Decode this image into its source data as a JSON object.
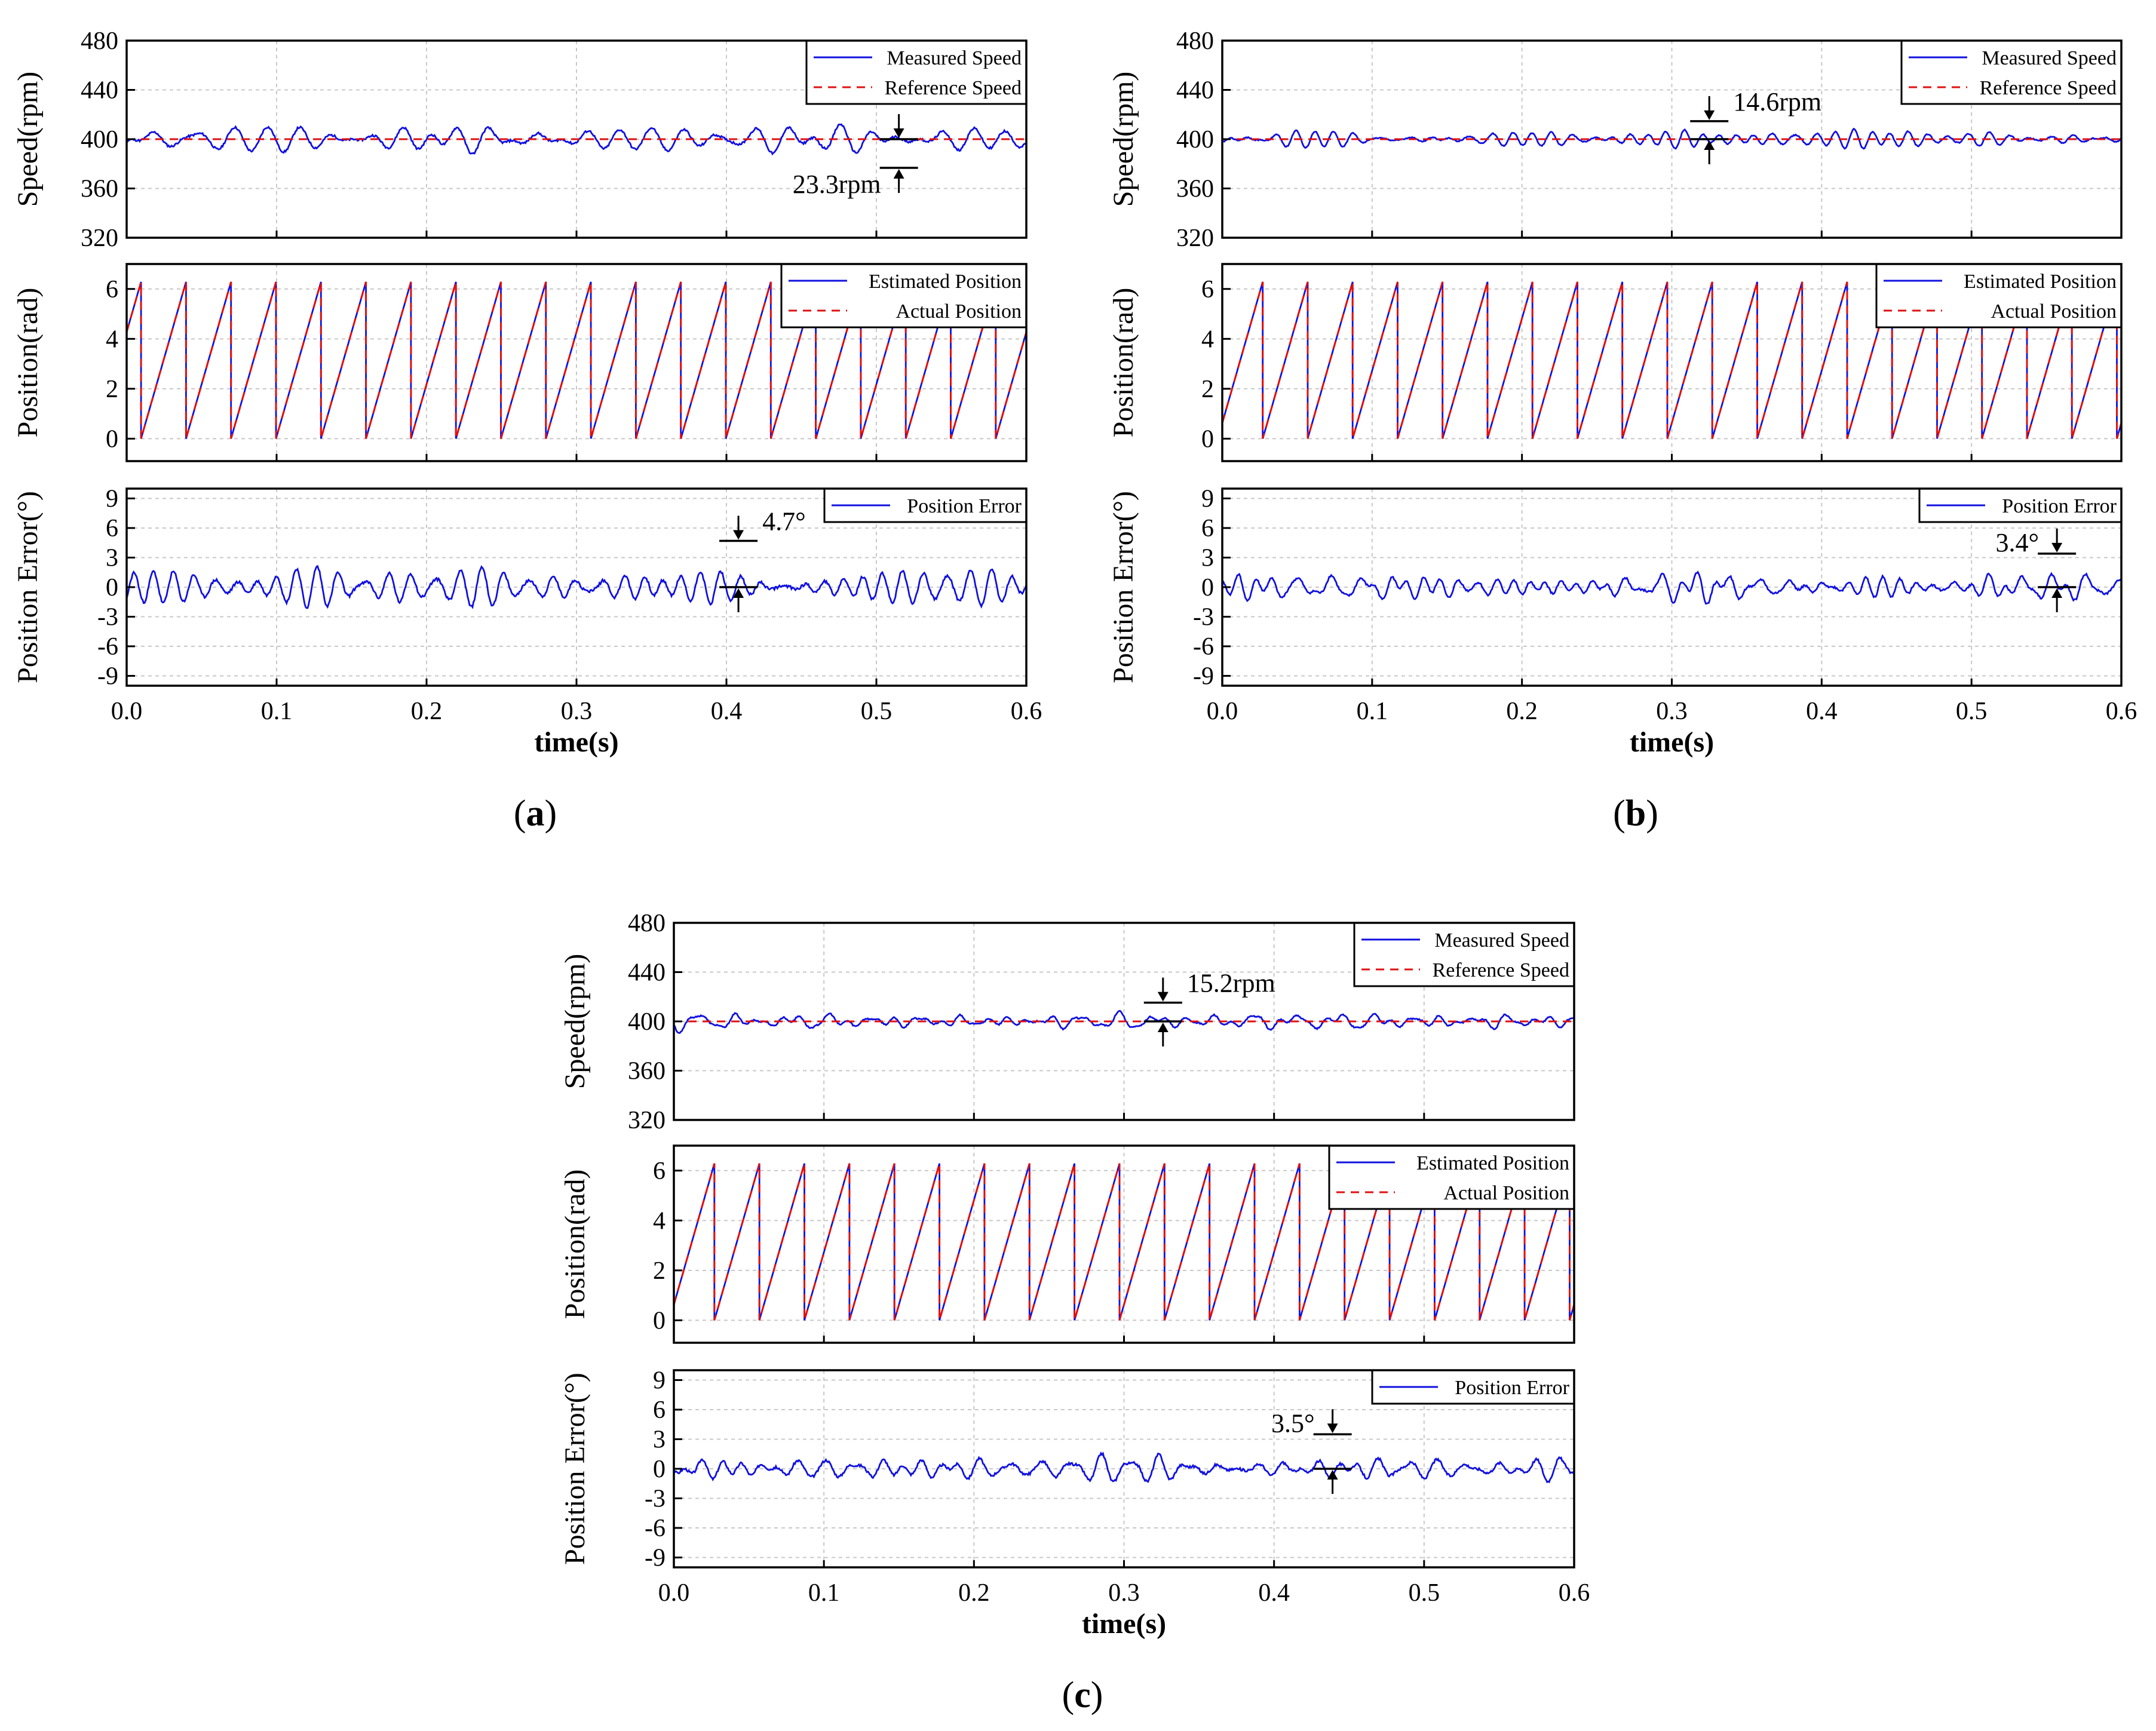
{
  "figure_title": "",
  "panel_labels": [
    "(a)",
    "(b)",
    "(c)"
  ],
  "panel_letters": [
    "a",
    "b",
    "c"
  ],
  "colors": {
    "measured": "#1010e0",
    "reference": "#e01010",
    "axis": "#000000",
    "grid": "#c8c8c8"
  },
  "chart_data": [
    {
      "panel": "a",
      "type": "line",
      "x_range": [
        0.0,
        0.6
      ],
      "x_ticks": [
        "0.0",
        "0.1",
        "0.2",
        "0.3",
        "0.4",
        "0.5",
        "0.6"
      ],
      "xlabel": "time(s)",
      "subplots": [
        {
          "name": "speed",
          "ylabel": "Speed(rpm)",
          "ylim": [
            320,
            480
          ],
          "y_ticks": [
            "480",
            "440",
            "400",
            "360",
            "320"
          ],
          "series": [
            {
              "name": "Measured Speed",
              "style": "solid",
              "kind": "noise",
              "center": 400,
              "amp": 9.5,
              "seed": 11,
              "freq": 38
            },
            {
              "name": "Reference Speed",
              "style": "dashed",
              "kind": "constant",
              "value": 400
            }
          ],
          "legend": [
            "Measured Speed",
            "Reference Speed"
          ],
          "annotation": {
            "text": "23.3rpm",
            "x": 0.515,
            "upper": 400,
            "lower": 376.7,
            "label_side": "left-below"
          }
        },
        {
          "name": "position",
          "ylabel": "Position(rad)",
          "ylim": [
            -0.9,
            7.0
          ],
          "y_ticks": [
            "6",
            "4",
            "2",
            "0"
          ],
          "series": [
            {
              "name": "Estimated Position",
              "style": "solid",
              "kind": "sawtooth",
              "period": 0.03,
              "phase": 0.68
            },
            {
              "name": "Actual Position",
              "style": "dashed",
              "kind": "sawtooth",
              "period": 0.03,
              "phase": 0.68
            }
          ],
          "legend": [
            "Estimated Position",
            "Actual Position"
          ]
        },
        {
          "name": "error",
          "ylabel": "Position Error(°)",
          "ylim": [
            -10,
            10
          ],
          "y_ticks": [
            "9",
            "6",
            "3",
            "0",
            "-3",
            "-6",
            "-9"
          ],
          "series": [
            {
              "name": "Position Error",
              "style": "solid",
              "kind": "noise",
              "center": 0,
              "amp": 1.7,
              "seed": 23,
              "freq": 52
            }
          ],
          "legend": [
            "Position Error"
          ],
          "annotation": {
            "text": "4.7°",
            "x": 0.408,
            "upper": 4.7,
            "lower": 0,
            "label_side": "right-above"
          }
        }
      ]
    },
    {
      "panel": "b",
      "type": "line",
      "x_range": [
        0.0,
        0.6
      ],
      "x_ticks": [
        "0.0",
        "0.1",
        "0.2",
        "0.3",
        "0.4",
        "0.5",
        "0.6"
      ],
      "xlabel": "time(s)",
      "subplots": [
        {
          "name": "speed",
          "ylabel": "Speed(rpm)",
          "ylim": [
            320,
            480
          ],
          "y_ticks": [
            "480",
            "440",
            "400",
            "360",
            "320"
          ],
          "series": [
            {
              "name": "Measured Speed",
              "style": "solid",
              "kind": "noise",
              "center": 400,
              "amp": 6.0,
              "seed": 37,
              "freq": 55
            },
            {
              "name": "Reference Speed",
              "style": "dashed",
              "kind": "constant",
              "value": 400
            }
          ],
          "legend": [
            "Measured Speed",
            "Reference Speed"
          ],
          "annotation": {
            "text": "14.6rpm",
            "x": 0.325,
            "upper": 414.6,
            "lower": 400,
            "label_side": "right-above"
          }
        },
        {
          "name": "position",
          "ylabel": "Position(rad)",
          "ylim": [
            -0.9,
            7.0
          ],
          "y_ticks": [
            "6",
            "4",
            "2",
            "0"
          ],
          "series": [
            {
              "name": "Estimated Position",
              "style": "solid",
              "kind": "sawtooth",
              "period": 0.03,
              "phase": 0.1
            },
            {
              "name": "Actual Position",
              "style": "dashed",
              "kind": "sawtooth",
              "period": 0.03,
              "phase": 0.1
            }
          ],
          "legend": [
            "Estimated Position",
            "Actual Position"
          ]
        },
        {
          "name": "error",
          "ylabel": "Position Error(°)",
          "ylim": [
            -10,
            10
          ],
          "y_ticks": [
            "9",
            "6",
            "3",
            "0",
            "-3",
            "-6",
            "-9"
          ],
          "series": [
            {
              "name": "Position Error",
              "style": "solid",
              "kind": "noise",
              "center": 0,
              "amp": 1.1,
              "seed": 41,
              "freq": 60
            }
          ],
          "legend": [
            "Position Error"
          ],
          "annotation": {
            "text": "3.4°",
            "x": 0.557,
            "upper": 3.4,
            "lower": 0,
            "label_side": "left-above"
          }
        }
      ]
    },
    {
      "panel": "c",
      "type": "line",
      "x_range": [
        0.0,
        0.6
      ],
      "x_ticks": [
        "0.0",
        "0.1",
        "0.2",
        "0.3",
        "0.4",
        "0.5",
        "0.6"
      ],
      "xlabel": "time(s)",
      "subplots": [
        {
          "name": "speed",
          "ylabel": "Speed(rpm)",
          "ylim": [
            320,
            480
          ],
          "y_ticks": [
            "480",
            "440",
            "400",
            "360",
            "320"
          ],
          "series": [
            {
              "name": "Measured Speed",
              "style": "solid",
              "kind": "noise",
              "center": 400,
              "amp": 5.5,
              "seed": 53,
              "freq": 58
            },
            {
              "name": "Reference Speed",
              "style": "dashed",
              "kind": "constant",
              "value": 400
            }
          ],
          "legend": [
            "Measured Speed",
            "Reference Speed"
          ],
          "annotation": {
            "text": "15.2rpm",
            "x": 0.326,
            "upper": 415.2,
            "lower": 400,
            "label_side": "right-above"
          }
        },
        {
          "name": "position",
          "ylabel": "Position(rad)",
          "ylim": [
            -0.9,
            7.0
          ],
          "y_ticks": [
            "6",
            "4",
            "2",
            "0"
          ],
          "series": [
            {
              "name": "Estimated Position",
              "style": "solid",
              "kind": "sawtooth",
              "period": 0.03,
              "phase": 0.1
            },
            {
              "name": "Actual Position",
              "style": "dashed",
              "kind": "sawtooth",
              "period": 0.03,
              "phase": 0.1
            }
          ],
          "legend": [
            "Estimated Position",
            "Actual Position"
          ]
        },
        {
          "name": "error",
          "ylabel": "Position Error(°)",
          "ylim": [
            -10,
            10
          ],
          "y_ticks": [
            "9",
            "6",
            "3",
            "0",
            "-3",
            "-6",
            "-9"
          ],
          "series": [
            {
              "name": "Position Error",
              "style": "solid",
              "kind": "noise",
              "center": 0,
              "amp": 1.15,
              "seed": 67,
              "freq": 62
            }
          ],
          "legend": [
            "Position Error"
          ],
          "annotation": {
            "text": "3.5°",
            "x": 0.439,
            "upper": 3.5,
            "lower": 0,
            "label_side": "left-above"
          }
        }
      ]
    }
  ]
}
